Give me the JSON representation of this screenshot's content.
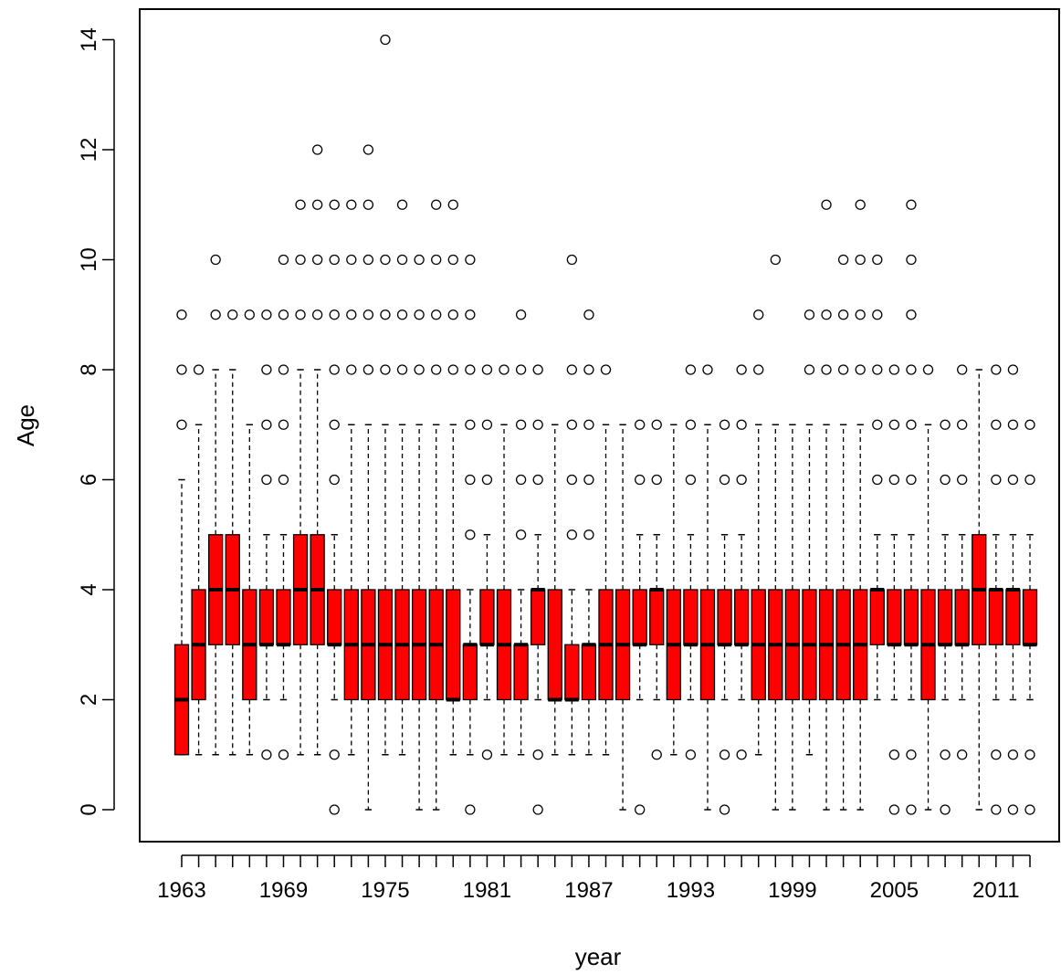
{
  "chart_data": {
    "type": "boxplot",
    "title": "",
    "xlabel": "year",
    "ylabel": "Age",
    "ylim": [
      0,
      14
    ],
    "y_ticks": [
      0,
      2,
      4,
      6,
      8,
      10,
      12,
      14
    ],
    "x_tick_labels_shown": [
      "1963",
      "1969",
      "1975",
      "1981",
      "1987",
      "1993",
      "1999",
      "2005",
      "2011"
    ],
    "grid": false,
    "box_color": "#ff0000",
    "categories": [
      1963,
      1964,
      1965,
      1966,
      1967,
      1968,
      1969,
      1970,
      1971,
      1972,
      1973,
      1974,
      1975,
      1976,
      1977,
      1978,
      1979,
      1980,
      1981,
      1982,
      1983,
      1984,
      1985,
      1986,
      1987,
      1988,
      1989,
      1990,
      1991,
      1992,
      1993,
      1994,
      1995,
      1996,
      1997,
      1998,
      1999,
      2000,
      2001,
      2002,
      2003,
      2004,
      2005,
      2006,
      2007,
      2008,
      2009,
      2010,
      2011,
      2012,
      2013
    ],
    "boxes": [
      {
        "year": 1963,
        "low": 1,
        "q1": 1,
        "median": 2,
        "q3": 3,
        "high": 6,
        "outliers": [
          7,
          8,
          9
        ]
      },
      {
        "year": 1964,
        "low": 1,
        "q1": 2,
        "median": 3,
        "q3": 4,
        "high": 7,
        "outliers": [
          8
        ]
      },
      {
        "year": 1965,
        "low": 1,
        "q1": 3,
        "median": 4,
        "q3": 5,
        "high": 8,
        "outliers": [
          9,
          10
        ]
      },
      {
        "year": 1966,
        "low": 1,
        "q1": 3,
        "median": 4,
        "q3": 5,
        "high": 8,
        "outliers": [
          9
        ]
      },
      {
        "year": 1967,
        "low": 1,
        "q1": 2,
        "median": 3,
        "q3": 4,
        "high": 7,
        "outliers": [
          9
        ]
      },
      {
        "year": 1968,
        "low": 2,
        "q1": 3,
        "median": 3,
        "q3": 4,
        "high": 5,
        "outliers": [
          1,
          6,
          7,
          8,
          9
        ]
      },
      {
        "year": 1969,
        "low": 2,
        "q1": 3,
        "median": 3,
        "q3": 4,
        "high": 5,
        "outliers": [
          1,
          6,
          7,
          8,
          9,
          10
        ]
      },
      {
        "year": 1970,
        "low": 1,
        "q1": 3,
        "median": 4,
        "q3": 5,
        "high": 8,
        "outliers": [
          9,
          10,
          11
        ]
      },
      {
        "year": 1971,
        "low": 1,
        "q1": 3,
        "median": 4,
        "q3": 5,
        "high": 8,
        "outliers": [
          9,
          10,
          11,
          12
        ]
      },
      {
        "year": 1972,
        "low": 2,
        "q1": 3,
        "median": 3,
        "q3": 4,
        "high": 5,
        "outliers": [
          0,
          1,
          6,
          7,
          8,
          9,
          10,
          11
        ]
      },
      {
        "year": 1973,
        "low": 1,
        "q1": 2,
        "median": 3,
        "q3": 4,
        "high": 7,
        "outliers": [
          8,
          9,
          10,
          11
        ]
      },
      {
        "year": 1974,
        "low": 0,
        "q1": 2,
        "median": 3,
        "q3": 4,
        "high": 7,
        "outliers": [
          8,
          9,
          10,
          11,
          12
        ]
      },
      {
        "year": 1975,
        "low": 1,
        "q1": 2,
        "median": 3,
        "q3": 4,
        "high": 7,
        "outliers": [
          8,
          9,
          10,
          14
        ]
      },
      {
        "year": 1976,
        "low": 1,
        "q1": 2,
        "median": 3,
        "q3": 4,
        "high": 7,
        "outliers": [
          8,
          9,
          10,
          11
        ]
      },
      {
        "year": 1977,
        "low": 0,
        "q1": 2,
        "median": 3,
        "q3": 4,
        "high": 7,
        "outliers": [
          8,
          9,
          10
        ]
      },
      {
        "year": 1978,
        "low": 0,
        "q1": 2,
        "median": 3,
        "q3": 4,
        "high": 7,
        "outliers": [
          8,
          9,
          10,
          11
        ]
      },
      {
        "year": 1979,
        "low": 1,
        "q1": 2,
        "median": 2,
        "q3": 4,
        "high": 7,
        "outliers": [
          8,
          9,
          10,
          11
        ]
      },
      {
        "year": 1980,
        "low": 1,
        "q1": 2,
        "median": 3,
        "q3": 3,
        "high": 4,
        "outliers": [
          0,
          5,
          6,
          7,
          8,
          9,
          10
        ]
      },
      {
        "year": 1981,
        "low": 2,
        "q1": 3,
        "median": 3,
        "q3": 4,
        "high": 5,
        "outliers": [
          1,
          6,
          7,
          8
        ]
      },
      {
        "year": 1982,
        "low": 1,
        "q1": 2,
        "median": 3,
        "q3": 4,
        "high": 7,
        "outliers": [
          8
        ]
      },
      {
        "year": 1983,
        "low": 1,
        "q1": 2,
        "median": 3,
        "q3": 3,
        "high": 4,
        "outliers": [
          5,
          6,
          7,
          8,
          9
        ]
      },
      {
        "year": 1984,
        "low": 2,
        "q1": 3,
        "median": 4,
        "q3": 4,
        "high": 5,
        "outliers": [
          0,
          1,
          6,
          7,
          8
        ]
      },
      {
        "year": 1985,
        "low": 1,
        "q1": 2,
        "median": 2,
        "q3": 4,
        "high": 7,
        "outliers": []
      },
      {
        "year": 1986,
        "low": 1,
        "q1": 2,
        "median": 2,
        "q3": 3,
        "high": 4,
        "outliers": [
          5,
          6,
          7,
          8,
          10
        ]
      },
      {
        "year": 1987,
        "low": 1,
        "q1": 2,
        "median": 3,
        "q3": 3,
        "high": 4,
        "outliers": [
          5,
          6,
          7,
          8,
          9
        ]
      },
      {
        "year": 1988,
        "low": 1,
        "q1": 2,
        "median": 3,
        "q3": 4,
        "high": 7,
        "outliers": [
          8
        ]
      },
      {
        "year": 1989,
        "low": 0,
        "q1": 2,
        "median": 3,
        "q3": 4,
        "high": 7,
        "outliers": []
      },
      {
        "year": 1990,
        "low": 2,
        "q1": 3,
        "median": 3,
        "q3": 4,
        "high": 5,
        "outliers": [
          0,
          6,
          7
        ]
      },
      {
        "year": 1991,
        "low": 2,
        "q1": 3,
        "median": 4,
        "q3": 4,
        "high": 5,
        "outliers": [
          1,
          6,
          7
        ]
      },
      {
        "year": 1992,
        "low": 1,
        "q1": 2,
        "median": 3,
        "q3": 4,
        "high": 7,
        "outliers": []
      },
      {
        "year": 1993,
        "low": 2,
        "q1": 3,
        "median": 3,
        "q3": 4,
        "high": 5,
        "outliers": [
          1,
          6,
          7,
          8
        ]
      },
      {
        "year": 1994,
        "low": 0,
        "q1": 2,
        "median": 3,
        "q3": 4,
        "high": 7,
        "outliers": [
          8
        ]
      },
      {
        "year": 1995,
        "low": 2,
        "q1": 3,
        "median": 3,
        "q3": 4,
        "high": 5,
        "outliers": [
          0,
          1,
          6,
          7
        ]
      },
      {
        "year": 1996,
        "low": 2,
        "q1": 3,
        "median": 3,
        "q3": 4,
        "high": 5,
        "outliers": [
          1,
          6,
          7,
          8
        ]
      },
      {
        "year": 1997,
        "low": 1,
        "q1": 2,
        "median": 3,
        "q3": 4,
        "high": 7,
        "outliers": [
          8,
          9
        ]
      },
      {
        "year": 1998,
        "low": 0,
        "q1": 2,
        "median": 3,
        "q3": 4,
        "high": 7,
        "outliers": [
          10
        ]
      },
      {
        "year": 1999,
        "low": 0,
        "q1": 2,
        "median": 3,
        "q3": 4,
        "high": 7,
        "outliers": []
      },
      {
        "year": 2000,
        "low": 1,
        "q1": 2,
        "median": 3,
        "q3": 4,
        "high": 7,
        "outliers": [
          8,
          9
        ]
      },
      {
        "year": 2001,
        "low": 0,
        "q1": 2,
        "median": 3,
        "q3": 4,
        "high": 7,
        "outliers": [
          8,
          9,
          11
        ]
      },
      {
        "year": 2002,
        "low": 0,
        "q1": 2,
        "median": 3,
        "q3": 4,
        "high": 7,
        "outliers": [
          8,
          9,
          10
        ]
      },
      {
        "year": 2003,
        "low": 0,
        "q1": 2,
        "median": 3,
        "q3": 4,
        "high": 7,
        "outliers": [
          8,
          9,
          10,
          11
        ]
      },
      {
        "year": 2004,
        "low": 2,
        "q1": 3,
        "median": 4,
        "q3": 4,
        "high": 5,
        "outliers": [
          6,
          7,
          8,
          9,
          10
        ]
      },
      {
        "year": 2005,
        "low": 2,
        "q1": 3,
        "median": 3,
        "q3": 4,
        "high": 5,
        "outliers": [
          0,
          1,
          6,
          7,
          8
        ]
      },
      {
        "year": 2006,
        "low": 2,
        "q1": 3,
        "median": 3,
        "q3": 4,
        "high": 5,
        "outliers": [
          0,
          1,
          6,
          7,
          8,
          9,
          10,
          11
        ]
      },
      {
        "year": 2007,
        "low": 0,
        "q1": 2,
        "median": 3,
        "q3": 4,
        "high": 7,
        "outliers": [
          8
        ]
      },
      {
        "year": 2008,
        "low": 2,
        "q1": 3,
        "median": 3,
        "q3": 4,
        "high": 5,
        "outliers": [
          0,
          1,
          6,
          7
        ]
      },
      {
        "year": 2009,
        "low": 2,
        "q1": 3,
        "median": 3,
        "q3": 4,
        "high": 5,
        "outliers": [
          1,
          6,
          7,
          8
        ]
      },
      {
        "year": 2010,
        "low": 0,
        "q1": 3,
        "median": 4,
        "q3": 5,
        "high": 8,
        "outliers": []
      },
      {
        "year": 2011,
        "low": 2,
        "q1": 3,
        "median": 4,
        "q3": 4,
        "high": 5,
        "outliers": [
          0,
          1,
          6,
          7,
          8
        ]
      },
      {
        "year": 2012,
        "low": 2,
        "q1": 3,
        "median": 4,
        "q3": 4,
        "high": 5,
        "outliers": [
          0,
          1,
          6,
          7,
          8
        ]
      },
      {
        "year": 2013,
        "low": 2,
        "q1": 3,
        "median": 3,
        "q3": 4,
        "high": 5,
        "outliers": [
          0,
          1,
          6,
          7
        ]
      }
    ]
  }
}
